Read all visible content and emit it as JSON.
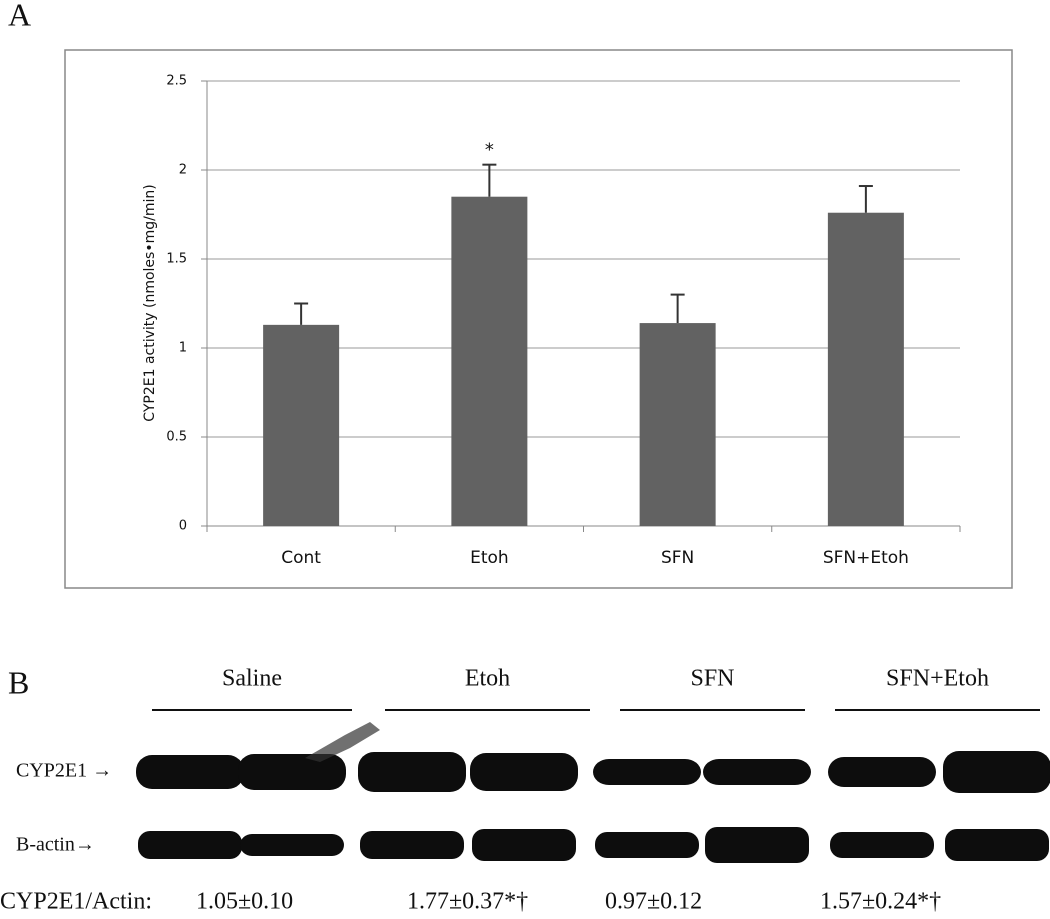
{
  "chart_data": {
    "type": "bar",
    "panel_label": "A",
    "ylabel": "CYP2E1 activity (nmoles•mg/min)",
    "categories": [
      "Cont",
      "Etoh",
      "SFN",
      "SFN+Etoh"
    ],
    "values": [
      1.13,
      1.85,
      1.14,
      1.76
    ],
    "errors": [
      0.12,
      0.18,
      0.16,
      0.15
    ],
    "color": "#626262",
    "ylim": [
      0,
      2.5
    ],
    "yticks": [
      0,
      0.5,
      1,
      1.5,
      2,
      2.5
    ],
    "grid": true,
    "annotations": [
      {
        "text": "*",
        "category": "Etoh"
      }
    ]
  },
  "blot": {
    "panel_label": "B",
    "groups": [
      "Saline",
      "Etoh",
      "SFN",
      "SFN+Etoh"
    ],
    "row_labels": [
      "CYP2E1 →",
      "B-actin→"
    ],
    "ratio_label": "CYP2E1/Actin:",
    "ratios": [
      "1.05±0.10",
      "1.77±0.37*†",
      "0.97±0.12",
      "1.57±0.24*†"
    ]
  }
}
